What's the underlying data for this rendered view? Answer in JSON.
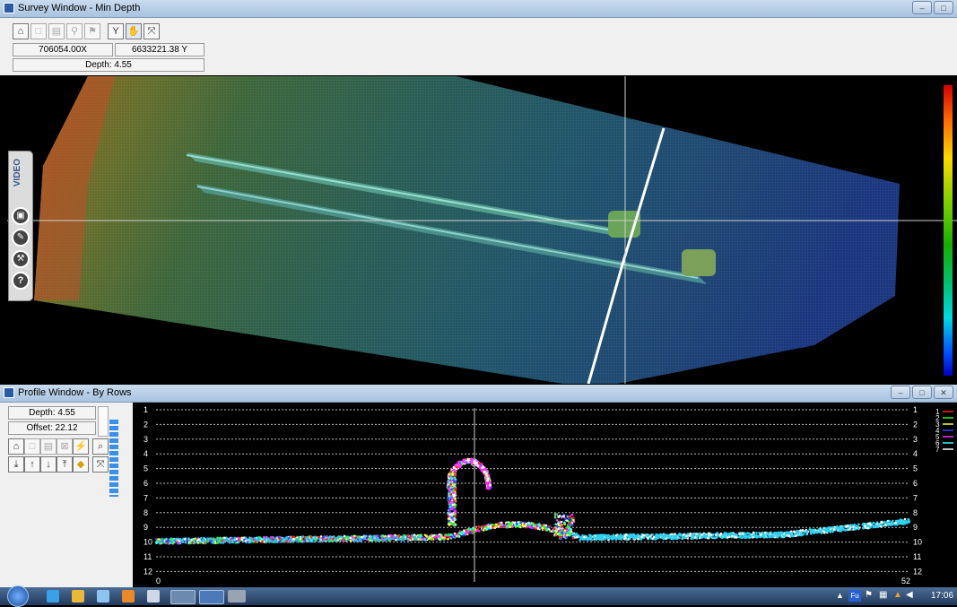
{
  "survey_window": {
    "title": "Survey Window - Min Depth",
    "x_coord": "706054.00",
    "x_suffix": "X",
    "y_coord": "6633221.38",
    "y_suffix": "Y",
    "depth": "Depth: 4.55",
    "side_tab": "VIDEO",
    "color_scale": {
      "colors": [
        "#d40000",
        "#ff6a00",
        "#ffd800",
        "#7fd000",
        "#16b000",
        "#00c070",
        "#00d8e0",
        "#0050ff",
        "#0000c0"
      ]
    }
  },
  "profile_window": {
    "title": "Profile Window - By Rows",
    "depth": "Depth: 4.55",
    "offset": "Offset: 22.12",
    "y_ticks": [
      "1",
      "2",
      "3",
      "4",
      "5",
      "6",
      "7",
      "8",
      "9",
      "10",
      "11",
      "12"
    ],
    "x_start": "0",
    "x_end": "52",
    "legend": [
      {
        "label": "1",
        "color": "#ff2020"
      },
      {
        "label": "2",
        "color": "#20ff20"
      },
      {
        "label": "3",
        "color": "#ffff40"
      },
      {
        "label": "4",
        "color": "#4040ff"
      },
      {
        "label": "5",
        "color": "#ff30ff"
      },
      {
        "label": "6",
        "color": "#30ffff"
      },
      {
        "label": "7",
        "color": "#ffffff"
      }
    ]
  },
  "taskbar": {
    "clock": "17:06",
    "lang": "Fu"
  }
}
